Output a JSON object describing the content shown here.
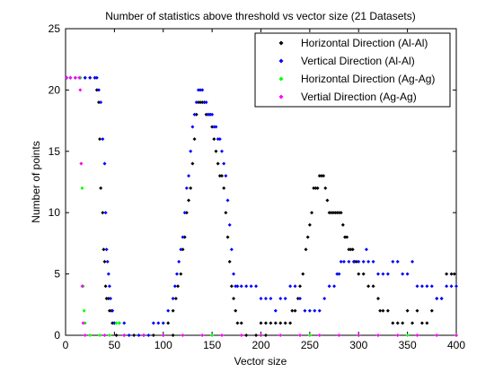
{
  "chart_data": {
    "type": "scatter",
    "title": "Number of statistics above threshold vs vector size (21 Datasets)",
    "xlabel": "Vector size",
    "ylabel": "Number of points",
    "xlim": [
      0,
      400
    ],
    "ylim": [
      0,
      25
    ],
    "xticks": [
      "0",
      "50",
      "100",
      "150",
      "200",
      "250",
      "300",
      "350",
      "400"
    ],
    "yticks": [
      "0",
      "5",
      "10",
      "15",
      "20",
      "25"
    ],
    "grid": false,
    "legend_position": "top-right",
    "series": [
      {
        "name": "Horizontal Direction (Al-Al)",
        "color": "#000000",
        "points": [
          [
            1,
            21
          ],
          [
            5,
            21
          ],
          [
            10,
            21
          ],
          [
            15,
            21
          ],
          [
            20,
            21
          ],
          [
            25,
            21
          ],
          [
            30,
            21
          ],
          [
            32,
            20
          ],
          [
            34,
            19
          ],
          [
            35,
            16
          ],
          [
            36,
            12
          ],
          [
            38,
            10
          ],
          [
            39,
            7
          ],
          [
            40,
            6
          ],
          [
            41,
            4
          ],
          [
            42,
            3
          ],
          [
            44,
            3
          ],
          [
            45,
            2
          ],
          [
            47,
            2
          ],
          [
            48,
            1
          ],
          [
            50,
            1
          ],
          [
            52,
            0
          ],
          [
            60,
            0
          ],
          [
            70,
            0
          ],
          [
            80,
            0
          ],
          [
            90,
            0
          ],
          [
            100,
            0
          ],
          [
            110,
            0
          ],
          [
            105,
            1
          ],
          [
            110,
            2
          ],
          [
            113,
            3
          ],
          [
            115,
            4
          ],
          [
            118,
            5
          ],
          [
            120,
            7
          ],
          [
            122,
            8
          ],
          [
            124,
            10
          ],
          [
            126,
            11
          ],
          [
            128,
            12
          ],
          [
            130,
            14
          ],
          [
            132,
            16
          ],
          [
            134,
            18
          ],
          [
            136,
            19
          ],
          [
            138,
            19
          ],
          [
            140,
            19
          ],
          [
            142,
            19
          ],
          [
            144,
            18
          ],
          [
            146,
            18
          ],
          [
            148,
            18
          ],
          [
            150,
            17
          ],
          [
            152,
            16
          ],
          [
            154,
            15
          ],
          [
            156,
            14
          ],
          [
            158,
            13
          ],
          [
            160,
            13
          ],
          [
            162,
            12
          ],
          [
            164,
            10
          ],
          [
            166,
            8
          ],
          [
            168,
            6
          ],
          [
            170,
            4
          ],
          [
            172,
            3
          ],
          [
            174,
            2
          ],
          [
            176,
            1
          ],
          [
            180,
            1
          ],
          [
            185,
            0
          ],
          [
            195,
            0
          ],
          [
            205,
            0
          ],
          [
            200,
            1
          ],
          [
            205,
            1
          ],
          [
            210,
            1
          ],
          [
            215,
            1
          ],
          [
            220,
            1
          ],
          [
            225,
            1
          ],
          [
            230,
            1
          ],
          [
            232,
            2
          ],
          [
            235,
            2
          ],
          [
            238,
            3
          ],
          [
            240,
            4
          ],
          [
            243,
            5
          ],
          [
            246,
            7
          ],
          [
            248,
            8
          ],
          [
            250,
            9
          ],
          [
            252,
            10
          ],
          [
            254,
            12
          ],
          [
            256,
            12
          ],
          [
            258,
            12
          ],
          [
            260,
            13
          ],
          [
            262,
            13
          ],
          [
            264,
            13
          ],
          [
            266,
            12
          ],
          [
            268,
            11
          ],
          [
            270,
            10
          ],
          [
            272,
            10
          ],
          [
            274,
            10
          ],
          [
            276,
            10
          ],
          [
            278,
            10
          ],
          [
            280,
            10
          ],
          [
            282,
            10
          ],
          [
            284,
            9
          ],
          [
            286,
            8
          ],
          [
            288,
            8
          ],
          [
            290,
            7
          ],
          [
            292,
            7
          ],
          [
            294,
            7
          ],
          [
            296,
            6
          ],
          [
            298,
            6
          ],
          [
            300,
            5
          ],
          [
            305,
            5
          ],
          [
            310,
            4
          ],
          [
            315,
            4
          ],
          [
            320,
            3
          ],
          [
            322,
            2
          ],
          [
            325,
            2
          ],
          [
            330,
            2
          ],
          [
            335,
            1
          ],
          [
            340,
            1
          ],
          [
            345,
            1
          ],
          [
            350,
            2
          ],
          [
            355,
            1
          ],
          [
            360,
            2
          ],
          [
            365,
            1
          ],
          [
            370,
            1
          ],
          [
            375,
            2
          ],
          [
            380,
            3
          ],
          [
            385,
            3
          ],
          [
            390,
            5
          ],
          [
            395,
            5
          ],
          [
            398,
            5
          ]
        ]
      },
      {
        "name": "Vertical Direction (Al-Al)",
        "color": "#0000ff",
        "points": [
          [
            1,
            21
          ],
          [
            5,
            21
          ],
          [
            10,
            21
          ],
          [
            15,
            21
          ],
          [
            20,
            21
          ],
          [
            25,
            21
          ],
          [
            30,
            21
          ],
          [
            32,
            21
          ],
          [
            34,
            20
          ],
          [
            36,
            19
          ],
          [
            38,
            16
          ],
          [
            40,
            14
          ],
          [
            41,
            10
          ],
          [
            42,
            7
          ],
          [
            43,
            6
          ],
          [
            44,
            5
          ],
          [
            45,
            4
          ],
          [
            46,
            3
          ],
          [
            48,
            2
          ],
          [
            50,
            1
          ],
          [
            55,
            1
          ],
          [
            60,
            1
          ],
          [
            65,
            0
          ],
          [
            75,
            0
          ],
          [
            85,
            0
          ],
          [
            90,
            1
          ],
          [
            95,
            1
          ],
          [
            100,
            1
          ],
          [
            105,
            2
          ],
          [
            110,
            3
          ],
          [
            112,
            4
          ],
          [
            114,
            5
          ],
          [
            116,
            6
          ],
          [
            118,
            7
          ],
          [
            120,
            8
          ],
          [
            122,
            10
          ],
          [
            124,
            12
          ],
          [
            126,
            13
          ],
          [
            128,
            15
          ],
          [
            130,
            17
          ],
          [
            132,
            18
          ],
          [
            134,
            19
          ],
          [
            136,
            20
          ],
          [
            138,
            20
          ],
          [
            140,
            20
          ],
          [
            142,
            19
          ],
          [
            144,
            19
          ],
          [
            146,
            18
          ],
          [
            148,
            18
          ],
          [
            150,
            18
          ],
          [
            152,
            17
          ],
          [
            154,
            17
          ],
          [
            156,
            16
          ],
          [
            158,
            16
          ],
          [
            160,
            15
          ],
          [
            162,
            14
          ],
          [
            164,
            13
          ],
          [
            166,
            11
          ],
          [
            168,
            9
          ],
          [
            170,
            7
          ],
          [
            172,
            5
          ],
          [
            174,
            4
          ],
          [
            176,
            4
          ],
          [
            180,
            4
          ],
          [
            185,
            4
          ],
          [
            190,
            4
          ],
          [
            195,
            4
          ],
          [
            200,
            3
          ],
          [
            205,
            3
          ],
          [
            210,
            3
          ],
          [
            215,
            2
          ],
          [
            220,
            3
          ],
          [
            225,
            3
          ],
          [
            230,
            4
          ],
          [
            235,
            4
          ],
          [
            240,
            3
          ],
          [
            245,
            2
          ],
          [
            250,
            2
          ],
          [
            255,
            2
          ],
          [
            260,
            2
          ],
          [
            265,
            3
          ],
          [
            270,
            4
          ],
          [
            275,
            4
          ],
          [
            278,
            5
          ],
          [
            280,
            5
          ],
          [
            282,
            6
          ],
          [
            285,
            6
          ],
          [
            290,
            6
          ],
          [
            295,
            6
          ],
          [
            300,
            6
          ],
          [
            305,
            6
          ],
          [
            308,
            7
          ],
          [
            310,
            6
          ],
          [
            315,
            6
          ],
          [
            320,
            5
          ],
          [
            325,
            5
          ],
          [
            330,
            5
          ],
          [
            335,
            6
          ],
          [
            340,
            6
          ],
          [
            345,
            5
          ],
          [
            350,
            5
          ],
          [
            355,
            6
          ],
          [
            360,
            4
          ],
          [
            365,
            4
          ],
          [
            370,
            4
          ],
          [
            375,
            4
          ],
          [
            380,
            3
          ],
          [
            385,
            3
          ],
          [
            390,
            4
          ],
          [
            395,
            4
          ],
          [
            400,
            4
          ]
        ]
      },
      {
        "name": "Horizontal Direction (Ag-Ag)",
        "color": "#00ff00",
        "points": [
          [
            1,
            21
          ],
          [
            5,
            21
          ],
          [
            10,
            21
          ],
          [
            15,
            21
          ],
          [
            16,
            14
          ],
          [
            17,
            12
          ],
          [
            18,
            4
          ],
          [
            19,
            2
          ],
          [
            20,
            1
          ],
          [
            25,
            0
          ],
          [
            35,
            0
          ],
          [
            45,
            0
          ],
          [
            52,
            1
          ],
          [
            55,
            1
          ],
          [
            60,
            0
          ],
          [
            100,
            0
          ],
          [
            150,
            0
          ],
          [
            200,
            0
          ],
          [
            250,
            0
          ],
          [
            300,
            0
          ],
          [
            350,
            0
          ],
          [
            400,
            0
          ]
        ]
      },
      {
        "name": "Vertial Direction (Ag-Ag)",
        "color": "#ff00ff",
        "points": [
          [
            1,
            21
          ],
          [
            5,
            21
          ],
          [
            10,
            21
          ],
          [
            14,
            21
          ],
          [
            15,
            20
          ],
          [
            16,
            14
          ],
          [
            17,
            4
          ],
          [
            18,
            1
          ],
          [
            20,
            0
          ],
          [
            40,
            0
          ],
          [
            60,
            0
          ],
          [
            80,
            0
          ],
          [
            100,
            0
          ],
          [
            120,
            0
          ],
          [
            140,
            0
          ],
          [
            160,
            0
          ],
          [
            180,
            0
          ],
          [
            200,
            0
          ],
          [
            220,
            0
          ],
          [
            240,
            0
          ],
          [
            260,
            0
          ],
          [
            280,
            0
          ],
          [
            300,
            0
          ],
          [
            320,
            0
          ],
          [
            340,
            0
          ],
          [
            360,
            0
          ],
          [
            380,
            0
          ],
          [
            400,
            0
          ]
        ]
      }
    ]
  }
}
